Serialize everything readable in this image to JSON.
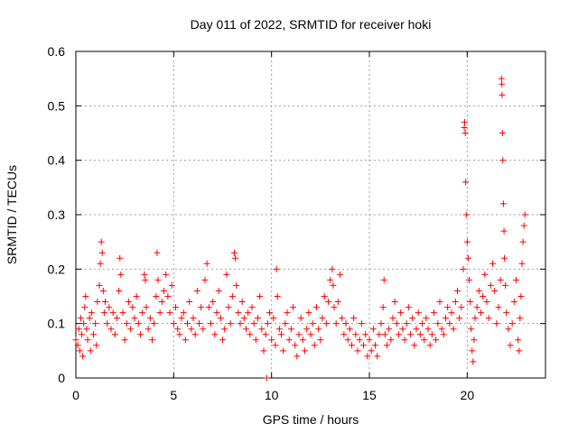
{
  "chart_data": {
    "type": "scatter",
    "title": "Day 011 of 2022, SRMTID for receiver hoki",
    "xlabel": "GPS time / hours",
    "ylabel": "SRMTID / TECUs",
    "xlim": [
      0,
      24
    ],
    "ylim": [
      0,
      0.6
    ],
    "x_ticks": [
      0,
      5,
      10,
      15,
      20
    ],
    "y_ticks": [
      0,
      0.1,
      0.2,
      0.3,
      0.4,
      0.5,
      0.6
    ],
    "x_tick_labels": [
      "0",
      "5",
      "10",
      "15",
      "20"
    ],
    "y_tick_labels": [
      "0",
      "0.1",
      "0.2",
      "0.3",
      "0.4",
      "0.5",
      "0.6"
    ],
    "grid": true,
    "marker": "plus",
    "color": "#ff0000",
    "series": [
      {
        "name": "SRMTID",
        "points": [
          [
            0.0,
            0.07
          ],
          [
            0.1,
            0.06
          ],
          [
            0.15,
            0.09
          ],
          [
            0.2,
            0.05
          ],
          [
            0.25,
            0.11
          ],
          [
            0.3,
            0.08
          ],
          [
            0.35,
            0.04
          ],
          [
            0.4,
            0.1
          ],
          [
            0.45,
            0.13
          ],
          [
            0.5,
            0.15
          ],
          [
            0.55,
            0.09
          ],
          [
            0.6,
            0.07
          ],
          [
            0.7,
            0.11
          ],
          [
            0.75,
            0.05
          ],
          [
            0.8,
            0.12
          ],
          [
            0.9,
            0.08
          ],
          [
            1.0,
            0.1
          ],
          [
            1.05,
            0.06
          ],
          [
            1.1,
            0.14
          ],
          [
            1.2,
            0.17
          ],
          [
            1.25,
            0.21
          ],
          [
            1.3,
            0.25
          ],
          [
            1.35,
            0.23
          ],
          [
            1.4,
            0.16
          ],
          [
            1.45,
            0.12
          ],
          [
            1.5,
            0.14
          ],
          [
            1.6,
            0.1
          ],
          [
            1.7,
            0.13
          ],
          [
            1.8,
            0.09
          ],
          [
            1.9,
            0.12
          ],
          [
            2.0,
            0.08
          ],
          [
            2.1,
            0.11
          ],
          [
            2.2,
            0.16
          ],
          [
            2.25,
            0.22
          ],
          [
            2.3,
            0.19
          ],
          [
            2.4,
            0.12
          ],
          [
            2.5,
            0.07
          ],
          [
            2.6,
            0.1
          ],
          [
            2.7,
            0.14
          ],
          [
            2.8,
            0.09
          ],
          [
            2.9,
            0.13
          ],
          [
            3.0,
            0.11
          ],
          [
            3.1,
            0.15
          ],
          [
            3.2,
            0.1
          ],
          [
            3.3,
            0.08
          ],
          [
            3.4,
            0.12
          ],
          [
            3.5,
            0.19
          ],
          [
            3.55,
            0.18
          ],
          [
            3.6,
            0.13
          ],
          [
            3.7,
            0.09
          ],
          [
            3.8,
            0.11
          ],
          [
            3.9,
            0.07
          ],
          [
            4.0,
            0.1
          ],
          [
            4.1,
            0.15
          ],
          [
            4.15,
            0.23
          ],
          [
            4.2,
            0.18
          ],
          [
            4.3,
            0.12
          ],
          [
            4.4,
            0.14
          ],
          [
            4.5,
            0.16
          ],
          [
            4.6,
            0.19
          ],
          [
            4.7,
            0.15
          ],
          [
            4.8,
            0.12
          ],
          [
            4.9,
            0.17
          ],
          [
            5.0,
            0.1
          ],
          [
            5.1,
            0.13
          ],
          [
            5.2,
            0.09
          ],
          [
            5.3,
            0.08
          ],
          [
            5.4,
            0.11
          ],
          [
            5.5,
            0.12
          ],
          [
            5.6,
            0.07
          ],
          [
            5.7,
            0.1
          ],
          [
            5.8,
            0.14
          ],
          [
            5.9,
            0.09
          ],
          [
            6.0,
            0.11
          ],
          [
            6.1,
            0.08
          ],
          [
            6.2,
            0.16
          ],
          [
            6.3,
            0.1
          ],
          [
            6.4,
            0.13
          ],
          [
            6.5,
            0.09
          ],
          [
            6.6,
            0.18
          ],
          [
            6.7,
            0.21
          ],
          [
            6.8,
            0.13
          ],
          [
            6.9,
            0.1
          ],
          [
            7.0,
            0.14
          ],
          [
            7.1,
            0.08
          ],
          [
            7.2,
            0.12
          ],
          [
            7.3,
            0.16
          ],
          [
            7.4,
            0.11
          ],
          [
            7.5,
            0.07
          ],
          [
            7.6,
            0.09
          ],
          [
            7.7,
            0.19
          ],
          [
            7.8,
            0.13
          ],
          [
            7.9,
            0.1
          ],
          [
            8.0,
            0.15
          ],
          [
            8.1,
            0.23
          ],
          [
            8.15,
            0.22
          ],
          [
            8.2,
            0.17
          ],
          [
            8.3,
            0.12
          ],
          [
            8.4,
            0.1
          ],
          [
            8.5,
            0.14
          ],
          [
            8.6,
            0.11
          ],
          [
            8.7,
            0.09
          ],
          [
            8.8,
            0.12
          ],
          [
            8.9,
            0.08
          ],
          [
            9.0,
            0.13
          ],
          [
            9.1,
            0.1
          ],
          [
            9.2,
            0.07
          ],
          [
            9.3,
            0.11
          ],
          [
            9.4,
            0.15
          ],
          [
            9.5,
            0.09
          ],
          [
            9.6,
            0.05
          ],
          [
            9.7,
            0.08
          ],
          [
            9.75,
            0.0
          ],
          [
            9.8,
            0.1
          ],
          [
            9.9,
            0.12
          ],
          [
            10.0,
            0.07
          ],
          [
            10.1,
            0.11
          ],
          [
            10.2,
            0.06
          ],
          [
            10.25,
            0.2
          ],
          [
            10.3,
            0.15
          ],
          [
            10.4,
            0.09
          ],
          [
            10.5,
            0.08
          ],
          [
            10.6,
            0.05
          ],
          [
            10.7,
            0.1
          ],
          [
            10.8,
            0.12
          ],
          [
            10.9,
            0.07
          ],
          [
            11.0,
            0.09
          ],
          [
            11.1,
            0.13
          ],
          [
            11.2,
            0.06
          ],
          [
            11.3,
            0.04
          ],
          [
            11.4,
            0.08
          ],
          [
            11.5,
            0.11
          ],
          [
            11.6,
            0.07
          ],
          [
            11.7,
            0.05
          ],
          [
            11.8,
            0.09
          ],
          [
            11.9,
            0.12
          ],
          [
            12.0,
            0.08
          ],
          [
            12.1,
            0.1
          ],
          [
            12.2,
            0.06
          ],
          [
            12.3,
            0.13
          ],
          [
            12.4,
            0.09
          ],
          [
            12.5,
            0.07
          ],
          [
            12.6,
            0.11
          ],
          [
            12.7,
            0.15
          ],
          [
            12.8,
            0.1
          ],
          [
            12.9,
            0.14
          ],
          [
            13.0,
            0.18
          ],
          [
            13.1,
            0.2
          ],
          [
            13.15,
            0.17
          ],
          [
            13.2,
            0.13
          ],
          [
            13.3,
            0.1
          ],
          [
            13.4,
            0.14
          ],
          [
            13.5,
            0.19
          ],
          [
            13.6,
            0.11
          ],
          [
            13.7,
            0.08
          ],
          [
            13.8,
            0.1
          ],
          [
            13.9,
            0.07
          ],
          [
            14.0,
            0.09
          ],
          [
            14.1,
            0.06
          ],
          [
            14.2,
            0.11
          ],
          [
            14.3,
            0.08
          ],
          [
            14.4,
            0.05
          ],
          [
            14.5,
            0.07
          ],
          [
            14.6,
            0.1
          ],
          [
            14.7,
            0.06
          ],
          [
            14.8,
            0.08
          ],
          [
            14.9,
            0.04
          ],
          [
            15.0,
            0.07
          ],
          [
            15.1,
            0.05
          ],
          [
            15.2,
            0.09
          ],
          [
            15.3,
            0.06
          ],
          [
            15.4,
            0.04
          ],
          [
            15.5,
            0.08
          ],
          [
            15.6,
            0.1
          ],
          [
            15.7,
            0.13
          ],
          [
            15.75,
            0.18
          ],
          [
            15.8,
            0.08
          ],
          [
            15.9,
            0.06
          ],
          [
            16.0,
            0.09
          ],
          [
            16.1,
            0.07
          ],
          [
            16.2,
            0.11
          ],
          [
            16.3,
            0.14
          ],
          [
            16.4,
            0.1
          ],
          [
            16.5,
            0.08
          ],
          [
            16.6,
            0.12
          ],
          [
            16.7,
            0.09
          ],
          [
            16.8,
            0.07
          ],
          [
            16.9,
            0.1
          ],
          [
            17.0,
            0.13
          ],
          [
            17.1,
            0.08
          ],
          [
            17.2,
            0.11
          ],
          [
            17.3,
            0.06
          ],
          [
            17.4,
            0.09
          ],
          [
            17.5,
            0.12
          ],
          [
            17.6,
            0.08
          ],
          [
            17.7,
            0.1
          ],
          [
            17.8,
            0.07
          ],
          [
            17.9,
            0.11
          ],
          [
            18.0,
            0.09
          ],
          [
            18.1,
            0.06
          ],
          [
            18.2,
            0.08
          ],
          [
            18.3,
            0.12
          ],
          [
            18.4,
            0.07
          ],
          [
            18.5,
            0.1
          ],
          [
            18.6,
            0.14
          ],
          [
            18.7,
            0.09
          ],
          [
            18.8,
            0.08
          ],
          [
            18.9,
            0.11
          ],
          [
            19.0,
            0.13
          ],
          [
            19.1,
            0.1
          ],
          [
            19.2,
            0.12
          ],
          [
            19.3,
            0.09
          ],
          [
            19.4,
            0.14
          ],
          [
            19.5,
            0.16
          ],
          [
            19.6,
            0.11
          ],
          [
            19.7,
            0.13
          ],
          [
            19.8,
            0.2
          ],
          [
            19.85,
            0.46
          ],
          [
            19.87,
            0.47
          ],
          [
            19.9,
            0.45
          ],
          [
            19.92,
            0.36
          ],
          [
            19.95,
            0.3
          ],
          [
            20.0,
            0.25
          ],
          [
            20.05,
            0.22
          ],
          [
            20.1,
            0.18
          ],
          [
            20.15,
            0.14
          ],
          [
            20.2,
            0.09
          ],
          [
            20.25,
            0.05
          ],
          [
            20.3,
            0.03
          ],
          [
            20.35,
            0.07
          ],
          [
            20.4,
            0.11
          ],
          [
            20.5,
            0.13
          ],
          [
            20.6,
            0.16
          ],
          [
            20.7,
            0.12
          ],
          [
            20.8,
            0.15
          ],
          [
            20.9,
            0.19
          ],
          [
            21.0,
            0.14
          ],
          [
            21.1,
            0.11
          ],
          [
            21.2,
            0.17
          ],
          [
            21.3,
            0.21
          ],
          [
            21.4,
            0.16
          ],
          [
            21.5,
            0.1
          ],
          [
            21.6,
            0.13
          ],
          [
            21.7,
            0.18
          ],
          [
            21.75,
            0.55
          ],
          [
            21.77,
            0.54
          ],
          [
            21.78,
            0.52
          ],
          [
            21.8,
            0.45
          ],
          [
            21.82,
            0.4
          ],
          [
            21.85,
            0.32
          ],
          [
            21.88,
            0.27
          ],
          [
            21.9,
            0.22
          ],
          [
            21.95,
            0.17
          ],
          [
            22.0,
            0.12
          ],
          [
            22.1,
            0.09
          ],
          [
            22.2,
            0.06
          ],
          [
            22.3,
            0.1
          ],
          [
            22.4,
            0.14
          ],
          [
            22.5,
            0.18
          ],
          [
            22.6,
            0.07
          ],
          [
            22.65,
            0.05
          ],
          [
            22.7,
            0.11
          ],
          [
            22.75,
            0.15
          ],
          [
            22.8,
            0.21
          ],
          [
            22.85,
            0.25
          ],
          [
            22.9,
            0.28
          ],
          [
            22.95,
            0.3
          ]
        ]
      }
    ]
  }
}
